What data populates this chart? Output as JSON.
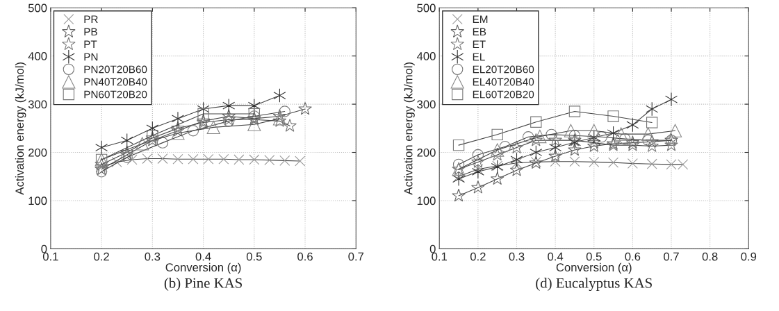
{
  "chart_data": [
    {
      "type": "line",
      "title": "(b) Pine KAS",
      "xlabel": "Conversion (α)",
      "ylabel": "Activation energy (kJ/mol)",
      "xlim": [
        0.1,
        0.7
      ],
      "xticks": [
        0.1,
        0.2,
        0.3,
        0.4,
        0.5,
        0.6,
        0.7
      ],
      "ylim": [
        0,
        500
      ],
      "yticks": [
        0,
        100,
        200,
        300,
        400,
        500
      ],
      "grid": true,
      "legend": "top left",
      "series": [
        {
          "name": "PR",
          "color": "#999999",
          "marker": "cross",
          "x": [
            0.2,
            0.23,
            0.26,
            0.29,
            0.32,
            0.35,
            0.38,
            0.41,
            0.44,
            0.47,
            0.5,
            0.53,
            0.56,
            0.59
          ],
          "values": [
            170,
            180,
            185,
            187,
            187,
            186,
            186,
            186,
            186,
            185,
            185,
            184,
            183,
            182
          ]
        },
        {
          "name": "PB",
          "color": "#666666",
          "marker": "star",
          "x": [
            0.2,
            0.25,
            0.3,
            0.35,
            0.4,
            0.45,
            0.5,
            0.55,
            0.6
          ],
          "values": [
            165,
            195,
            225,
            245,
            265,
            275,
            270,
            275,
            290
          ]
        },
        {
          "name": "PT",
          "color": "#777777",
          "marker": "star",
          "x": [
            0.2,
            0.25,
            0.3,
            0.35,
            0.4,
            0.45,
            0.5,
            0.55,
            0.57
          ],
          "values": [
            175,
            200,
            230,
            250,
            262,
            268,
            268,
            265,
            255
          ]
        },
        {
          "name": "PN",
          "color": "#333333",
          "marker": "cross",
          "x": [
            0.2,
            0.25,
            0.3,
            0.35,
            0.4,
            0.45,
            0.5,
            0.55
          ],
          "values": [
            210,
            225,
            250,
            270,
            290,
            297,
            297,
            318
          ]
        },
        {
          "name": "PN20T20B60",
          "color": "#777777",
          "marker": "circle",
          "x": [
            0.2,
            0.25,
            0.32,
            0.38,
            0.45,
            0.5,
            0.56
          ],
          "values": [
            160,
            190,
            220,
            245,
            265,
            275,
            285
          ]
        },
        {
          "name": "PN40T20B40",
          "color": "#888888",
          "marker": "triangle",
          "x": [
            0.2,
            0.28,
            0.35,
            0.42,
            0.5,
            0.55
          ],
          "values": [
            185,
            218,
            240,
            252,
            258,
            270
          ]
        },
        {
          "name": "PN60T20B20",
          "color": "#777777",
          "marker": "square",
          "x": [
            0.2,
            0.3,
            0.4,
            0.5
          ],
          "values": [
            185,
            235,
            280,
            280
          ]
        }
      ]
    },
    {
      "type": "line",
      "title": "(d) Eucalyptus KAS",
      "xlabel": "Conversion (α)",
      "ylabel": "Activation energy (kJ/mol)",
      "xlim": [
        0.1,
        0.9
      ],
      "xticks": [
        0.1,
        0.2,
        0.3,
        0.4,
        0.5,
        0.6,
        0.7,
        0.8,
        0.9
      ],
      "ylim": [
        0,
        500
      ],
      "yticks": [
        0,
        100,
        200,
        300,
        400,
        500
      ],
      "grid": true,
      "legend": "top left",
      "series": [
        {
          "name": "EM",
          "color": "#999999",
          "marker": "cross",
          "x": [
            0.15,
            0.2,
            0.25,
            0.3,
            0.35,
            0.4,
            0.45,
            0.5,
            0.55,
            0.6,
            0.65,
            0.7,
            0.73
          ],
          "values": [
            150,
            165,
            172,
            178,
            180,
            181,
            181,
            180,
            179,
            177,
            176,
            175,
            175
          ]
        },
        {
          "name": "EB",
          "color": "#666666",
          "marker": "star",
          "x": [
            0.15,
            0.2,
            0.25,
            0.3,
            0.35,
            0.4,
            0.45,
            0.5,
            0.55,
            0.6,
            0.65,
            0.7
          ],
          "values": [
            110,
            127,
            145,
            163,
            178,
            192,
            205,
            213,
            218,
            220,
            222,
            225
          ]
        },
        {
          "name": "ET",
          "color": "#777777",
          "marker": "star",
          "x": [
            0.15,
            0.2,
            0.25,
            0.3,
            0.35,
            0.4,
            0.45,
            0.5,
            0.55,
            0.6,
            0.65,
            0.7
          ],
          "values": [
            165,
            180,
            195,
            210,
            225,
            225,
            225,
            220,
            215,
            215,
            213,
            215
          ]
        },
        {
          "name": "EL",
          "color": "#333333",
          "marker": "cross",
          "x": [
            0.15,
            0.2,
            0.25,
            0.3,
            0.35,
            0.4,
            0.45,
            0.5,
            0.55,
            0.6,
            0.65,
            0.7
          ],
          "values": [
            145,
            160,
            170,
            185,
            200,
            210,
            221,
            231,
            240,
            257,
            290,
            310
          ]
        },
        {
          "name": "EL20T20B60",
          "color": "#777777",
          "marker": "circle",
          "x": [
            0.15,
            0.2,
            0.27,
            0.33,
            0.39,
            0.45,
            0.52,
            0.58,
            0.64,
            0.7
          ],
          "values": [
            175,
            195,
            212,
            232,
            237,
            235,
            232,
            228,
            225,
            225
          ]
        },
        {
          "name": "EL40T20B40",
          "color": "#888888",
          "marker": "triangle",
          "x": [
            0.15,
            0.25,
            0.36,
            0.44,
            0.5,
            0.57,
            0.64,
            0.71
          ],
          "values": [
            165,
            205,
            233,
            245,
            245,
            238,
            238,
            245
          ]
        },
        {
          "name": "EL60T20B20",
          "color": "#777777",
          "marker": "square",
          "x": [
            0.15,
            0.25,
            0.35,
            0.45,
            0.55,
            0.65
          ],
          "values": [
            215,
            237,
            263,
            285,
            275,
            262
          ]
        }
      ]
    }
  ]
}
